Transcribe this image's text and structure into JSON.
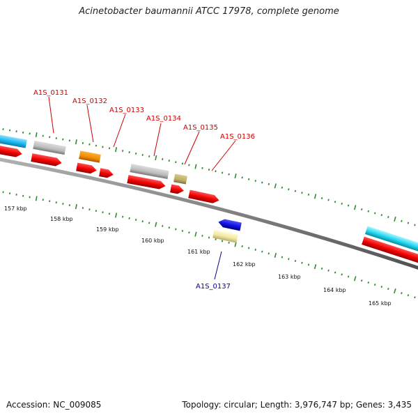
{
  "title": "Acinetobacter baumannii ATCC 17978, complete genome",
  "footer": {
    "accession": "Accession: NC_009085",
    "summary": "Topology: circular; Length: 3,976,747 bp; Genes: 3,435"
  },
  "colors": {
    "backbone": "#808080",
    "tick": "#2e8b2e",
    "forward_label": "#cc0000",
    "reverse_label": "#000099"
  },
  "kbp_labels": [
    "157 kbp",
    "158 kbp",
    "159 kbp",
    "160 kbp",
    "161 kbp",
    "162 kbp",
    "163 kbp",
    "164 kbp",
    "165 kbp"
  ],
  "gene_labels": [
    {
      "text": "A1S_0131",
      "strand": "forward"
    },
    {
      "text": "A1S_0132",
      "strand": "forward"
    },
    {
      "text": "A1S_0133",
      "strand": "forward"
    },
    {
      "text": "A1S_0134",
      "strand": "forward"
    },
    {
      "text": "A1S_0135",
      "strand": "forward"
    },
    {
      "text": "A1S_0136",
      "strand": "forward"
    },
    {
      "text": "A1S_0137",
      "strand": "reverse"
    }
  ]
}
